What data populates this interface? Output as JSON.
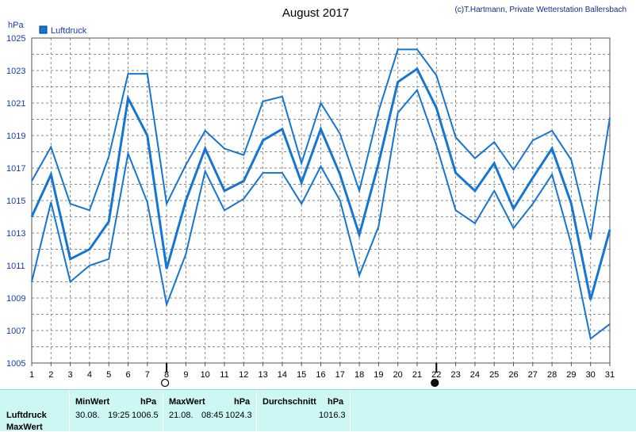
{
  "header": {
    "title": "August 2017",
    "credit": "(c)T.Hartmann, Private Wetterstation Ballersbach"
  },
  "colors": {
    "series": "#1476d2",
    "grid": "#8a8a8a",
    "panel_bg": "#ccf7f4"
  },
  "chart_data": {
    "type": "line",
    "title": "August 2017",
    "ylabel": "hPa",
    "xlabel": "",
    "ylim": [
      1005,
      1025
    ],
    "yticks": [
      1005,
      1007,
      1009,
      1011,
      1013,
      1015,
      1017,
      1019,
      1021,
      1023,
      1025
    ],
    "x": [
      1,
      2,
      3,
      4,
      5,
      6,
      7,
      8,
      9,
      10,
      11,
      12,
      13,
      14,
      15,
      16,
      17,
      18,
      19,
      20,
      21,
      22,
      23,
      24,
      25,
      26,
      27,
      28,
      29,
      30,
      31
    ],
    "grid": true,
    "legend": {
      "position": "top-left",
      "entries": [
        "Luftdruck"
      ]
    },
    "markers": {
      "new_moon_day": 8,
      "full_moon_day": 22
    },
    "series": [
      {
        "name": "Luftdruck",
        "role": "mean",
        "values": [
          1014.0,
          1016.6,
          1011.4,
          1012.0,
          1013.7,
          1021.3,
          1019.0,
          1010.8,
          1015.0,
          1018.2,
          1015.6,
          1016.2,
          1018.7,
          1019.4,
          1016.1,
          1019.4,
          1016.6,
          1012.9,
          1017.3,
          1022.3,
          1023.1,
          1020.7,
          1016.7,
          1015.6,
          1017.3,
          1014.5,
          1016.4,
          1018.2,
          1014.8,
          1008.9,
          1013.2
        ]
      },
      {
        "role": "max",
        "values": [
          1016.2,
          1018.3,
          1014.8,
          1014.4,
          1017.7,
          1022.8,
          1022.8,
          1014.8,
          1017.2,
          1019.3,
          1018.2,
          1017.8,
          1021.1,
          1021.4,
          1017.3,
          1021.0,
          1019.1,
          1015.6,
          1020.5,
          1024.3,
          1024.3,
          1022.7,
          1018.9,
          1017.6,
          1018.6,
          1016.9,
          1018.7,
          1019.3,
          1017.5,
          1012.6,
          1020.1
        ]
      },
      {
        "role": "min",
        "values": [
          1010.0,
          1014.9,
          1010.0,
          1011.0,
          1011.4,
          1017.9,
          1014.9,
          1008.6,
          1011.7,
          1016.8,
          1014.4,
          1015.1,
          1016.7,
          1016.7,
          1014.8,
          1017.1,
          1015.0,
          1010.4,
          1013.4,
          1020.4,
          1021.8,
          1018.4,
          1014.4,
          1013.6,
          1015.6,
          1013.3,
          1014.8,
          1016.6,
          1012.3,
          1006.5,
          1007.4
        ]
      }
    ]
  },
  "table": {
    "headers": {
      "min": "MinWert",
      "min_unit": "hPa",
      "max": "MaxWert",
      "max_unit": "hPa",
      "avg": "Durchschnitt",
      "avg_unit": "hPa"
    },
    "rows": [
      {
        "label": "Luftdruck",
        "min_date": "30.08.",
        "min_time": "19:25",
        "min_value": "1006.5",
        "max_date": "21.08.",
        "max_time": "08:45",
        "max_value": "1024.3",
        "avg_value": "1016.3"
      },
      {
        "label": "MaxWert"
      }
    ]
  }
}
